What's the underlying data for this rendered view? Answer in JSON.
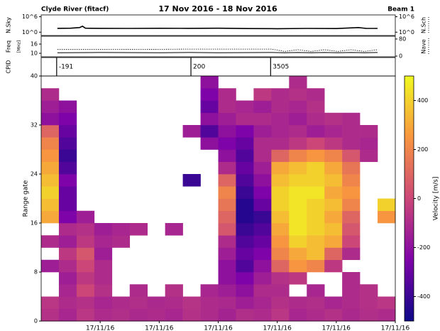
{
  "header": {
    "left": "Clyde River  (fitacf)",
    "title": "17 Nov 2016 - 18 Nov 2016",
    "right": "Beam 1"
  },
  "chart_data": [
    {
      "type": "line",
      "ylabel": "N.Sky",
      "y2label": "N.Sch",
      "log": true,
      "xlim": [
        0,
        24
      ],
      "ylim": [
        0.05,
        5000000
      ],
      "y2lim": [
        0.05,
        5000000
      ],
      "yticks": [
        {
          "value": 1000000,
          "label": "10^6"
        },
        {
          "value": 1,
          "label": "10^0"
        }
      ],
      "y2ticks": [
        {
          "value": 1000000,
          "label": "10^6"
        },
        {
          "value": 1,
          "label": "10^0"
        }
      ],
      "x": [
        1.1,
        2,
        2.6,
        2.8,
        3,
        4,
        6,
        8,
        10,
        12,
        14,
        16,
        18,
        20,
        21.5,
        22,
        22.8
      ],
      "series": [
        {
          "name": "N.Sky",
          "color": "#000000",
          "width": 1.6,
          "values": [
            30,
            35,
            60,
            200,
            35,
            30,
            28,
            32,
            30,
            35,
            25,
            22,
            28,
            26,
            60,
            30,
            28
          ]
        }
      ]
    },
    {
      "type": "line",
      "ylabel": "Freq",
      "yunit": "[MHz]",
      "y2label": "Nave",
      "xlim": [
        0,
        24
      ],
      "ylim": [
        7.7,
        21.1
      ],
      "y2lim": [
        -3.3,
        93
      ],
      "yticks": [
        16,
        10
      ],
      "y2ticks": [
        80,
        0
      ],
      "x": [
        1.1,
        4,
        8,
        10,
        12,
        15.6,
        16.5,
        17.4,
        18.3,
        19.2,
        20.1,
        21,
        21.9,
        22.8
      ],
      "series": [
        {
          "name": "Freq",
          "color": "#000000",
          "width": 1,
          "values": [
            10.4,
            10.5,
            10.4,
            10.5,
            10.4,
            10.5,
            10.4,
            10.5,
            10.4,
            10.5,
            10.4,
            10.5,
            10.4,
            10.5
          ]
        },
        {
          "name": "Nave",
          "axis": "y2",
          "color": "#000000",
          "width": 0.8,
          "dash": true,
          "values": [
            31,
            31,
            32,
            33,
            33,
            33,
            22,
            30,
            22,
            30,
            22,
            30,
            22,
            30
          ]
        }
      ]
    },
    {
      "type": "segments",
      "ylabel": "CPID",
      "xlim": [
        0,
        24
      ],
      "starts": [
        1.05,
        10.15,
        15.55
      ],
      "values": [
        -191,
        200,
        3505
      ]
    },
    {
      "type": "heatmap",
      "ylabel": "Range gate",
      "xlim": [
        0,
        24
      ],
      "ylim": [
        0,
        40
      ],
      "yticks": [
        0,
        8,
        16,
        24,
        32,
        40
      ],
      "xticks": [
        {
          "value": 4,
          "label": "17/11/16"
        },
        {
          "value": 8,
          "label": "17/11/16"
        },
        {
          "value": 12,
          "label": "17/11/16"
        },
        {
          "value": 16,
          "label": "17/11/16"
        },
        {
          "value": 20,
          "label": "17/11/16"
        },
        {
          "value": 24,
          "label": "17/11/16"
        }
      ],
      "x_bins": [
        0,
        1.2,
        2.4,
        3.6,
        4.8,
        6,
        7.2,
        8.4,
        9.6,
        10.8,
        12,
        13.2,
        14.4,
        15.6,
        16.8,
        18,
        19.2,
        20.4,
        21.6,
        22.8,
        24
      ],
      "y_bins": [
        0,
        2,
        4,
        6,
        8,
        10,
        12,
        14,
        16,
        18,
        20,
        22,
        24,
        26,
        28,
        30,
        32,
        34,
        36,
        38,
        40
      ],
      "z": [
        [
          -80,
          -120,
          -60,
          -100,
          -90,
          -110,
          -100,
          -120,
          -80,
          -100,
          -130,
          -90,
          -100,
          -60,
          -120,
          -100,
          -80,
          -110,
          -90,
          -100
        ],
        [
          -60,
          -100,
          -80,
          -120,
          -100,
          -90,
          -110,
          -100,
          -70,
          -100,
          -110,
          -150,
          -120,
          -80,
          -100,
          -90,
          -120,
          -100,
          -80,
          -60
        ],
        [
          null,
          -120,
          0,
          -80,
          null,
          -100,
          null,
          -80,
          null,
          -120,
          -150,
          -200,
          -100,
          -100,
          null,
          -120,
          null,
          -100,
          -80,
          null
        ],
        [
          null,
          -150,
          -50,
          -100,
          null,
          null,
          null,
          null,
          null,
          null,
          -200,
          -250,
          -150,
          -80,
          -50,
          null,
          null,
          -100,
          null,
          null
        ],
        [
          -150,
          -100,
          0,
          -100,
          null,
          null,
          null,
          null,
          null,
          null,
          -200,
          -350,
          -200,
          100,
          250,
          200,
          -50,
          null,
          null,
          null
        ],
        [
          null,
          -50,
          50,
          -150,
          null,
          null,
          null,
          null,
          null,
          null,
          -150,
          -300,
          -250,
          200,
          300,
          350,
          100,
          -100,
          null,
          null
        ],
        [
          -100,
          -150,
          -50,
          -120,
          -100,
          null,
          null,
          null,
          null,
          null,
          -100,
          -350,
          -300,
          250,
          400,
          350,
          300,
          0,
          null,
          null
        ],
        [
          null,
          -100,
          -80,
          -150,
          -120,
          -100,
          null,
          -120,
          null,
          null,
          50,
          -400,
          -350,
          300,
          450,
          400,
          350,
          50,
          null,
          null
        ],
        [
          300,
          -250,
          -150,
          null,
          null,
          null,
          null,
          null,
          null,
          null,
          100,
          -450,
          -400,
          350,
          450,
          400,
          300,
          100,
          null,
          250
        ],
        [
          350,
          -300,
          null,
          null,
          null,
          null,
          null,
          null,
          null,
          null,
          150,
          -450,
          -300,
          400,
          450,
          400,
          350,
          200,
          null,
          400
        ],
        [
          400,
          -300,
          null,
          null,
          null,
          null,
          null,
          null,
          null,
          null,
          200,
          -400,
          -250,
          400,
          450,
          450,
          300,
          250,
          null,
          null
        ],
        [
          350,
          -250,
          null,
          null,
          null,
          null,
          null,
          null,
          -400,
          null,
          100,
          -350,
          -200,
          350,
          400,
          400,
          350,
          200,
          null,
          null
        ],
        [
          300,
          -350,
          null,
          null,
          null,
          null,
          null,
          null,
          null,
          null,
          -100,
          -300,
          -150,
          300,
          350,
          400,
          300,
          150,
          null,
          null
        ],
        [
          250,
          -400,
          null,
          null,
          null,
          null,
          null,
          null,
          null,
          null,
          -200,
          -350,
          -100,
          100,
          200,
          250,
          200,
          50,
          -100,
          null
        ],
        [
          200,
          -350,
          null,
          null,
          null,
          null,
          null,
          null,
          null,
          -200,
          -250,
          -300,
          -100,
          -100,
          -50,
          0,
          -50,
          -100,
          -120,
          null
        ],
        [
          100,
          -300,
          null,
          null,
          null,
          null,
          null,
          null,
          -150,
          -350,
          -200,
          -250,
          -150,
          -120,
          -100,
          -150,
          -120,
          -100,
          -100,
          null
        ],
        [
          -200,
          -250,
          null,
          null,
          null,
          null,
          null,
          null,
          null,
          -200,
          -150,
          -100,
          -100,
          -120,
          -150,
          -100,
          -80,
          -100,
          null,
          null
        ],
        [
          -150,
          -200,
          null,
          null,
          null,
          null,
          null,
          null,
          null,
          -300,
          -100,
          -120,
          -150,
          -100,
          -120,
          -80,
          null,
          null,
          null,
          null
        ],
        [
          -100,
          null,
          null,
          null,
          null,
          null,
          null,
          null,
          null,
          -250,
          -100,
          null,
          -50,
          -100,
          -80,
          -100,
          null,
          null,
          null,
          null
        ],
        [
          null,
          null,
          null,
          null,
          null,
          null,
          null,
          null,
          null,
          -200,
          null,
          null,
          null,
          null,
          -100,
          null,
          null,
          null,
          null,
          null
        ]
      ],
      "colormap": [
        "#0d0887",
        "#7e03a8",
        "#cc4778",
        "#f89540",
        "#f0f921"
      ],
      "clim": [
        -500,
        500
      ],
      "cticks": [
        400,
        200,
        0,
        -200,
        -400
      ],
      "colorbar_label": "Velocity [m/s]"
    }
  ]
}
